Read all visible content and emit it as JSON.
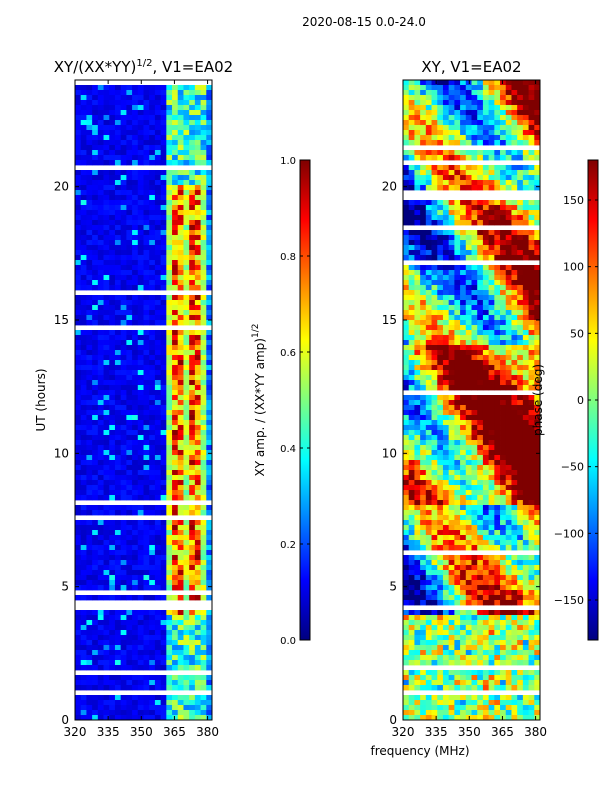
{
  "suptitle": "2020-08-15 0.0-24.0",
  "xlabel_shared": "frequency (MHz)",
  "colors": {
    "jet": [
      "#00007f",
      "#0000ff",
      "#007fff",
      "#00ffff",
      "#7fff7f",
      "#ffff00",
      "#ff7f00",
      "#ff0000",
      "#7f0000"
    ]
  },
  "chart_data": [
    {
      "type": "heatmap",
      "title_prefix": "XY/(XX*YY)",
      "title_sup": "1/2",
      "title_suffix": ", V1=EA02",
      "xlabel": "",
      "ylabel": "UT (hours)",
      "xlim": [
        320,
        382
      ],
      "ylim": [
        0,
        24
      ],
      "xticks": [
        320,
        335,
        350,
        365,
        380
      ],
      "yticks": [
        0,
        5,
        10,
        15,
        20
      ],
      "colorbar": {
        "label_main": "XY amp. / (XX*YY amp)",
        "label_sup": "1/2",
        "vmin": 0.0,
        "vmax": 1.0,
        "ticks": [
          "0.0",
          "0.2",
          "0.4",
          "0.6",
          "0.8",
          "1.0"
        ],
        "tick_values": [
          0.0,
          0.2,
          0.4,
          0.6,
          0.8,
          1.0
        ]
      }
    },
    {
      "type": "heatmap",
      "title": "XY, V1=EA02",
      "xlabel": "frequency (MHz)",
      "ylabel": "",
      "xlim": [
        320,
        382
      ],
      "ylim": [
        0,
        24
      ],
      "xticks": [
        320,
        335,
        350,
        365,
        380
      ],
      "yticks": [
        0,
        5,
        10,
        15,
        20
      ],
      "colorbar": {
        "label_main": "phase (deg)",
        "vmin": -180,
        "vmax": 180,
        "ticks": [
          "−150",
          "−100",
          "−50",
          "0",
          "50",
          "100",
          "150"
        ],
        "tick_values": [
          -150,
          -100,
          -50,
          0,
          50,
          100,
          150
        ]
      }
    }
  ]
}
